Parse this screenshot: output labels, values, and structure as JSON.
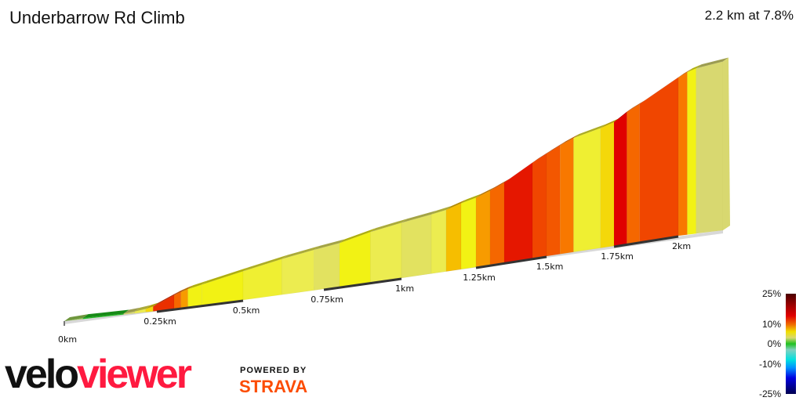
{
  "header": {
    "title": "Underbarrow Rd Climb",
    "summary": "2.2 km at 7.8%"
  },
  "legend": {
    "labels": [
      "25%",
      "10%",
      "0%",
      "-10%",
      "-25%"
    ]
  },
  "branding": {
    "logo_part1": "velo",
    "logo_part2": "viewer",
    "powered_by": "POWERED BY",
    "strava": "STRAVA"
  },
  "chart_data": {
    "type": "area",
    "title": "Underbarrow Rd Climb",
    "xlabel": "",
    "ylabel": "",
    "x_unit": "km",
    "xlim": [
      0,
      2.2
    ],
    "x_ticks": [
      "0km",
      "0.25km",
      "0.5km",
      "0.75km",
      "1km",
      "1.25km",
      "1.5km",
      "1.75km",
      "2km"
    ],
    "color_scale": "gradient %",
    "color_scale_range": [
      -25,
      25
    ],
    "segments": [
      {
        "start": 0.0,
        "end": 0.05,
        "grade": 2
      },
      {
        "start": 0.05,
        "end": 0.16,
        "grade": 0
      },
      {
        "start": 0.16,
        "end": 0.19,
        "grade": 3
      },
      {
        "start": 0.19,
        "end": 0.22,
        "grade": 5
      },
      {
        "start": 0.22,
        "end": 0.24,
        "grade": 8
      },
      {
        "start": 0.24,
        "end": 0.3,
        "grade": 15
      },
      {
        "start": 0.3,
        "end": 0.32,
        "grade": 12
      },
      {
        "start": 0.32,
        "end": 0.34,
        "grade": 10
      },
      {
        "start": 0.34,
        "end": 0.38,
        "grade": 7
      },
      {
        "start": 0.38,
        "end": 0.5,
        "grade": 7
      },
      {
        "start": 0.5,
        "end": 0.62,
        "grade": 6
      },
      {
        "start": 0.62,
        "end": 0.72,
        "grade": 5
      },
      {
        "start": 0.72,
        "end": 0.8,
        "grade": 4
      },
      {
        "start": 0.8,
        "end": 0.9,
        "grade": 7
      },
      {
        "start": 0.9,
        "end": 1.0,
        "grade": 5
      },
      {
        "start": 1.0,
        "end": 1.1,
        "grade": 4
      },
      {
        "start": 1.1,
        "end": 1.15,
        "grade": 5
      },
      {
        "start": 1.15,
        "end": 1.2,
        "grade": 9
      },
      {
        "start": 1.2,
        "end": 1.25,
        "grade": 7
      },
      {
        "start": 1.25,
        "end": 1.3,
        "grade": 10
      },
      {
        "start": 1.3,
        "end": 1.35,
        "grade": 12
      },
      {
        "start": 1.35,
        "end": 1.45,
        "grade": 16
      },
      {
        "start": 1.45,
        "end": 1.5,
        "grade": 14
      },
      {
        "start": 1.5,
        "end": 1.55,
        "grade": 13
      },
      {
        "start": 1.55,
        "end": 1.6,
        "grade": 11
      },
      {
        "start": 1.6,
        "end": 1.7,
        "grade": 6
      },
      {
        "start": 1.7,
        "end": 1.75,
        "grade": 8
      },
      {
        "start": 1.75,
        "end": 1.8,
        "grade": 17
      },
      {
        "start": 1.8,
        "end": 1.85,
        "grade": 12
      },
      {
        "start": 1.85,
        "end": 2.0,
        "grade": 14
      },
      {
        "start": 2.0,
        "end": 2.04,
        "grade": 11
      },
      {
        "start": 2.04,
        "end": 2.08,
        "grade": 7
      },
      {
        "start": 2.08,
        "end": 2.2,
        "grade": 3
      }
    ]
  }
}
